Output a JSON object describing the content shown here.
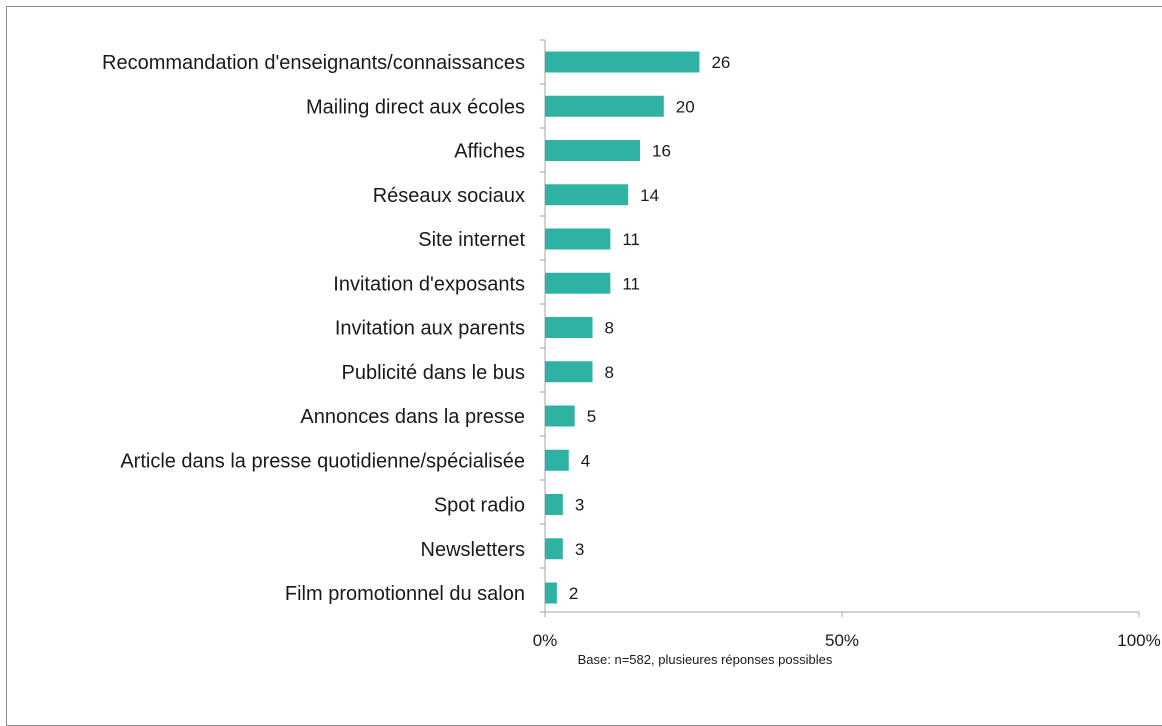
{
  "chart_data": {
    "type": "bar",
    "orientation": "horizontal",
    "categories": [
      "Recommandation d'enseignants/connaissances",
      "Mailing direct aux écoles",
      "Affiches",
      "Réseaux sociaux",
      "Site internet",
      "Invitation d'exposants",
      "Invitation aux parents",
      "Publicité dans le bus",
      "Annonces dans la presse",
      "Article dans la presse quotidienne/spécialisée",
      "Spot radio",
      "Newsletters",
      "Film promotionnel du salon"
    ],
    "values": [
      26,
      20,
      16,
      14,
      11,
      11,
      8,
      8,
      5,
      4,
      3,
      3,
      2
    ],
    "value_labels": [
      "26",
      "20",
      "16",
      "14",
      "11",
      "11",
      "8",
      "8",
      "5",
      "4",
      "3",
      "3",
      "2"
    ],
    "xlim": [
      0,
      100
    ],
    "x_ticks": [
      0,
      50,
      100
    ],
    "x_tick_labels": [
      "0%",
      "50%",
      "100%"
    ],
    "gridlines": false,
    "bar_color": "#2fb2a3",
    "axis_color": "#a6a6a6",
    "note": "Base: n=582, plusieures réponses possibles"
  }
}
